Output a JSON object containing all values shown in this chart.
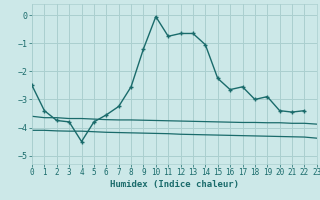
{
  "xlabel": "Humidex (Indice chaleur)",
  "background_color": "#cce8e8",
  "grid_color": "#aacfcf",
  "line_color": "#1a6b6b",
  "xlim": [
    0,
    23
  ],
  "ylim": [
    -5.3,
    0.4
  ],
  "yticks": [
    0,
    -1,
    -2,
    -3,
    -4,
    -5
  ],
  "xticks": [
    0,
    1,
    2,
    3,
    4,
    5,
    6,
    7,
    8,
    9,
    10,
    11,
    12,
    13,
    14,
    15,
    16,
    17,
    18,
    19,
    20,
    21,
    22,
    23
  ],
  "line1_x": [
    0,
    1,
    2,
    3,
    4,
    5,
    6,
    7,
    8,
    9,
    10,
    11,
    12,
    13,
    14,
    15,
    16,
    17,
    18,
    19,
    20,
    21,
    22
  ],
  "line1_y": [
    -2.5,
    -3.4,
    -3.75,
    -3.8,
    -4.5,
    -3.8,
    -3.55,
    -3.25,
    -2.55,
    -1.2,
    -0.05,
    -0.75,
    -0.65,
    -0.65,
    -1.05,
    -2.25,
    -2.65,
    -2.55,
    -3.0,
    -2.9,
    -3.4,
    -3.45,
    -3.4
  ],
  "line2_x": [
    0,
    1,
    2,
    3,
    4,
    5,
    6,
    7,
    8,
    9,
    10,
    11,
    12,
    13,
    14,
    15,
    16,
    17,
    18,
    19,
    20,
    21,
    22,
    23
  ],
  "line2_y": [
    -3.6,
    -3.65,
    -3.65,
    -3.68,
    -3.68,
    -3.7,
    -3.72,
    -3.73,
    -3.73,
    -3.74,
    -3.75,
    -3.76,
    -3.77,
    -3.78,
    -3.79,
    -3.8,
    -3.81,
    -3.82,
    -3.82,
    -3.83,
    -3.83,
    -3.85,
    -3.85,
    -3.88
  ],
  "line3_x": [
    0,
    1,
    2,
    3,
    4,
    5,
    6,
    7,
    8,
    9,
    10,
    11,
    12,
    13,
    14,
    15,
    16,
    17,
    18,
    19,
    20,
    21,
    22,
    23
  ],
  "line3_y": [
    -4.1,
    -4.1,
    -4.12,
    -4.13,
    -4.13,
    -4.15,
    -4.17,
    -4.18,
    -4.19,
    -4.2,
    -4.21,
    -4.22,
    -4.24,
    -4.25,
    -4.26,
    -4.27,
    -4.28,
    -4.29,
    -4.3,
    -4.31,
    -4.32,
    -4.33,
    -4.34,
    -4.38
  ]
}
